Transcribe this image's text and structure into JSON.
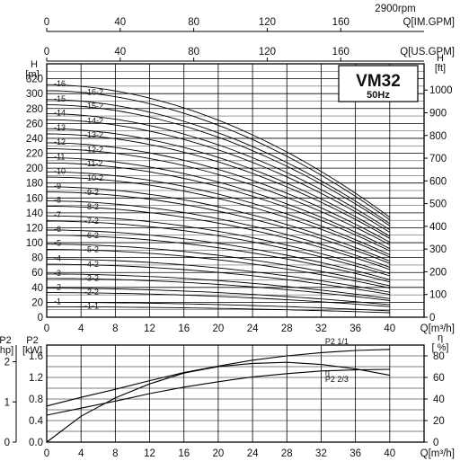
{
  "chart_data": [
    {
      "type": "line",
      "name": "head",
      "top_axes": [
        {
          "label": "Q[IM.GPM]",
          "ticks": [
            "0",
            "40",
            "80",
            "120",
            "160"
          ],
          "max": 176
        },
        {
          "label": "Q[US.GPM]",
          "ticks": [
            "0",
            "40",
            "80",
            "120",
            "160"
          ],
          "max": 176
        }
      ],
      "speed_label": "2900rpm",
      "model_title": "VM32",
      "model_subtitle": "50Hz",
      "xlabel": "Q[m³/h]",
      "x_ticks": [
        "0",
        "4",
        "8",
        "12",
        "16",
        "20",
        "24",
        "28",
        "32",
        "36",
        "40"
      ],
      "xlim": [
        0,
        44
      ],
      "left_axis": {
        "label_top": "H",
        "label_unit": "[m]",
        "ticks": [
          "0",
          "20",
          "40",
          "60",
          "80",
          "100",
          "120",
          "140",
          "160",
          "180",
          "200",
          "220",
          "240",
          "260",
          "280",
          "300",
          "320"
        ],
        "ylim": [
          0,
          340
        ]
      },
      "right_axis": {
        "label_top": "H",
        "label_unit": "[ft]",
        "ticks": [
          "0",
          "100",
          "200",
          "300",
          "400",
          "500",
          "600",
          "700",
          "800",
          "900",
          "1000"
        ]
      },
      "curve_shape": {
        "q_end": 40,
        "drop_fraction_at_end": 0.57,
        "exponent": 1.9
      },
      "stage_labels_left": [
        "-1",
        "-2",
        "-3",
        "-4",
        "-5",
        "-6",
        "-7",
        "-8",
        "-9",
        "-10",
        "-11",
        "-12",
        "-13",
        "-14",
        "-15",
        "-16"
      ],
      "stage_labels_right": [
        "-1-1",
        "-2-2",
        "-3-2",
        "-4-2",
        "-5-2",
        "-6-2",
        "-7-2",
        "-8-2",
        "-9-2",
        "-10-2",
        "-11-2",
        "-12-2",
        "-13-2",
        "-14-2",
        "-15-2",
        "-16-2"
      ],
      "series": [
        {
          "shutoff_head": 20
        },
        {
          "shutoff_head": 39
        },
        {
          "shutoff_head": 58
        },
        {
          "shutoff_head": 78
        },
        {
          "shutoff_head": 98
        },
        {
          "shutoff_head": 117
        },
        {
          "shutoff_head": 136
        },
        {
          "shutoff_head": 156
        },
        {
          "shutoff_head": 175
        },
        {
          "shutoff_head": 195
        },
        {
          "shutoff_head": 214
        },
        {
          "shutoff_head": 234
        },
        {
          "shutoff_head": 253
        },
        {
          "shutoff_head": 273
        },
        {
          "shutoff_head": 292
        },
        {
          "shutoff_head": 312
        },
        {
          "shutoff_head": 14
        },
        {
          "shutoff_head": 33
        },
        {
          "shutoff_head": 52
        },
        {
          "shutoff_head": 71
        },
        {
          "shutoff_head": 91
        },
        {
          "shutoff_head": 110
        },
        {
          "shutoff_head": 129
        },
        {
          "shutoff_head": 149
        },
        {
          "shutoff_head": 168
        },
        {
          "shutoff_head": 188
        },
        {
          "shutoff_head": 207
        },
        {
          "shutoff_head": 226
        },
        {
          "shutoff_head": 246
        },
        {
          "shutoff_head": 265
        },
        {
          "shutoff_head": 285
        },
        {
          "shutoff_head": 304
        }
      ]
    },
    {
      "type": "line",
      "name": "power",
      "xlabel": "Q[m³/h]",
      "x_ticks": [
        "0",
        "4",
        "8",
        "12",
        "16",
        "20",
        "24",
        "28",
        "32",
        "36",
        "40"
      ],
      "xlim": [
        0,
        44
      ],
      "left_axis_outer": {
        "label_top": "P2",
        "label_unit": "[hp]",
        "ticks": [
          "0",
          "1",
          "2"
        ]
      },
      "left_axis": {
        "label_top": "P2",
        "label_unit": "[kW]",
        "ticks": [
          "0.0",
          "0.4",
          "0.8",
          "1.2",
          "1.6"
        ],
        "ylim": [
          0,
          1.8
        ]
      },
      "right_axis": {
        "label_top": "η",
        "label_unit": "[ %]",
        "ticks": [
          "0",
          "20",
          "40",
          "60",
          "80"
        ],
        "ylim": [
          0,
          90
        ]
      },
      "series": [
        {
          "name": "P2 1/1",
          "x": [
            0,
            4,
            8,
            12,
            16,
            20,
            24,
            28,
            32,
            36,
            40
          ],
          "y": [
            0.67,
            0.83,
            0.98,
            1.14,
            1.29,
            1.41,
            1.52,
            1.6,
            1.66,
            1.7,
            1.72
          ]
        },
        {
          "name": "P2 2/3",
          "x": [
            0,
            4,
            8,
            12,
            16,
            20,
            24,
            28,
            32,
            36,
            40
          ],
          "y": [
            0.5,
            0.63,
            0.76,
            0.9,
            1.02,
            1.12,
            1.21,
            1.27,
            1.32,
            1.34,
            1.35
          ]
        },
        {
          "name": "η",
          "x": [
            0,
            4,
            8,
            12,
            16,
            20,
            24,
            28,
            32,
            36,
            40
          ],
          "y": [
            0,
            24,
            41,
            54,
            64,
            70,
            73,
            74,
            72,
            68,
            62
          ],
          "axis": "right"
        }
      ]
    }
  ]
}
